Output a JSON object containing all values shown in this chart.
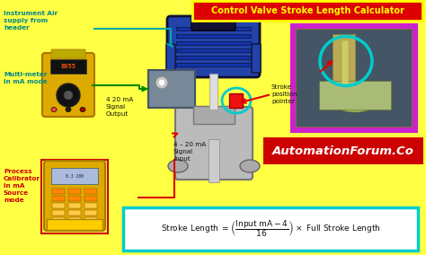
{
  "title": "Control Valve Stroke Length Calculator",
  "bg_color": "#FFFF44",
  "title_bg": "#DD0000",
  "title_color": "#FFFF00",
  "title_border": "#FFFF00",
  "formula_box_color": "#00CCCC",
  "formula_box_bg": "#FFFFFF",
  "label_instrument_air": "Instrument Air\nsupply from\nheader",
  "label_multimeter": "Multi-meter\nin mA mode",
  "label_signal_output": "4 20 mA\nSignal\nOutput",
  "label_signal_input": "4 – 20 mA\nSignal\nInput",
  "label_process_cal": "Process\nCalibrator\nin mA\nSource\nmode",
  "label_stroke_pointer": "Stroke\nposition\npointer",
  "label_automation": "AutomationForum.Co",
  "label_color_cyan": "#008888",
  "label_color_red": "#CC0000",
  "label_color_black": "#111111",
  "arrow_color_cyan": "#00AAAA",
  "arrow_color_red": "#DD0000",
  "arrow_color_green": "#008800",
  "valve_actuator_color": "#2244AA",
  "valve_actuator_dark": "#111133",
  "valve_body_color": "#999999",
  "valve_body_light": "#BBBBBB",
  "valve_stem_color": "#CCCCCC",
  "positioner_color": "#778899",
  "positioner_edge": "#445566",
  "meter_body": "#DDAA00",
  "meter_screen": "#111111",
  "meter_text": "#FF6600",
  "cal_body": "#DDAA00",
  "cal_screen": "#AABBDD",
  "right_photo_border": "#CC22CC",
  "right_photo_bg": "#997755",
  "right_inner_bg": "#5577AA",
  "teal_circle_color": "#00CCCC",
  "autoforum_bg": "#CC0000",
  "autoforum_color": "#FFFFFF",
  "formula_text_color": "#111111"
}
